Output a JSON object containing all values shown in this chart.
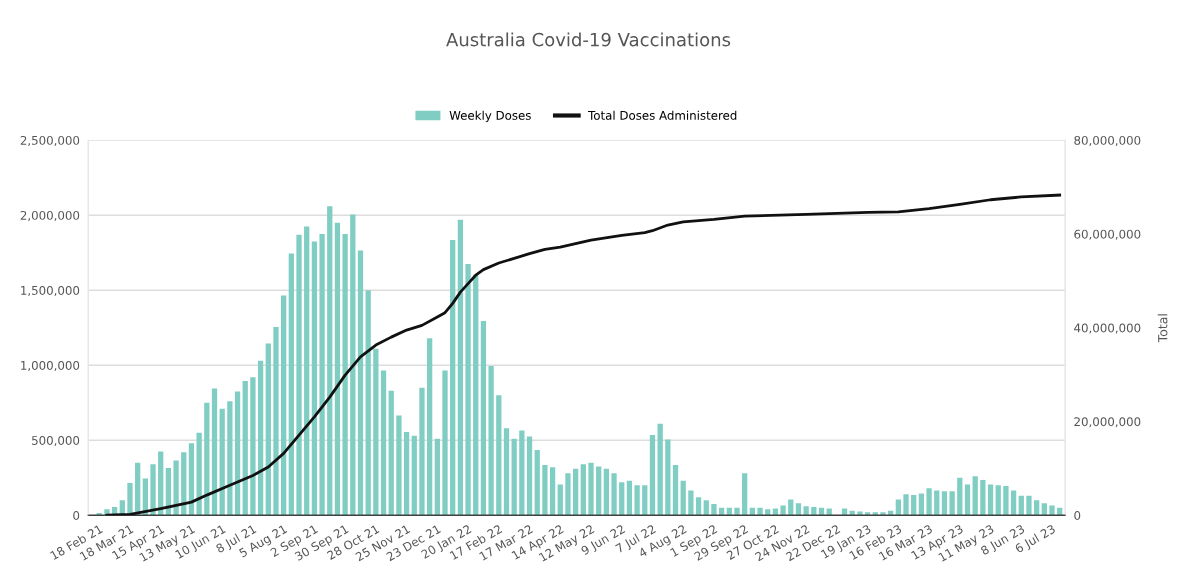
{
  "chart_data": {
    "type": "bar",
    "title": "Australia Covid-19 Vaccinations",
    "x": [
      "2021-02-18",
      "2021-02-25",
      "2021-03-04",
      "2021-03-11",
      "2021-03-18",
      "2021-03-25",
      "2021-04-01",
      "2021-04-08",
      "2021-04-15",
      "2021-04-22",
      "2021-04-29",
      "2021-05-06",
      "2021-05-13",
      "2021-05-20",
      "2021-05-27",
      "2021-06-03",
      "2021-06-10",
      "2021-06-17",
      "2021-06-24",
      "2021-07-01",
      "2021-07-08",
      "2021-07-15",
      "2021-07-22",
      "2021-07-29",
      "2021-08-05",
      "2021-08-12",
      "2021-08-19",
      "2021-08-26",
      "2021-09-02",
      "2021-09-09",
      "2021-09-16",
      "2021-09-23",
      "2021-09-30",
      "2021-10-07",
      "2021-10-14",
      "2021-10-21",
      "2021-10-28",
      "2021-11-04",
      "2021-11-11",
      "2021-11-18",
      "2021-11-25",
      "2021-12-02",
      "2021-12-09",
      "2021-12-16",
      "2021-12-23",
      "2021-12-30",
      "2022-01-06",
      "2022-01-13",
      "2022-01-20",
      "2022-01-27",
      "2022-02-03",
      "2022-02-10",
      "2022-02-17",
      "2022-02-24",
      "2022-03-03",
      "2022-03-10",
      "2022-03-17",
      "2022-03-24",
      "2022-03-31",
      "2022-04-07",
      "2022-04-14",
      "2022-04-21",
      "2022-04-28",
      "2022-05-05",
      "2022-05-12",
      "2022-05-19",
      "2022-05-26",
      "2022-06-02",
      "2022-06-09",
      "2022-06-16",
      "2022-06-23",
      "2022-06-30",
      "2022-07-07",
      "2022-07-14",
      "2022-07-21",
      "2022-07-28",
      "2022-08-04",
      "2022-08-11",
      "2022-08-18",
      "2022-08-25",
      "2022-09-01",
      "2022-09-08",
      "2022-09-15",
      "2022-09-22",
      "2022-09-29",
      "2022-10-06",
      "2022-10-13",
      "2022-10-20",
      "2022-10-27",
      "2022-11-03",
      "2022-11-10",
      "2022-11-17",
      "2022-11-24",
      "2022-12-01",
      "2022-12-08",
      "2022-12-15",
      "2022-12-22",
      "2022-12-29",
      "2023-01-05",
      "2023-01-12",
      "2023-01-19",
      "2023-01-26",
      "2023-02-02",
      "2023-02-09",
      "2023-02-16",
      "2023-02-23",
      "2023-03-02",
      "2023-03-09",
      "2023-03-16",
      "2023-03-23",
      "2023-03-30",
      "2023-04-06",
      "2023-04-13",
      "2023-04-20",
      "2023-04-27",
      "2023-05-04",
      "2023-05-11",
      "2023-05-18",
      "2023-05-25",
      "2023-06-01",
      "2023-06-08",
      "2023-06-15",
      "2023-06-22",
      "2023-06-29",
      "2023-07-06",
      "2023-07-13"
    ],
    "series": [
      {
        "name": "Weekly Doses",
        "color": "#7fcdc3",
        "values": [
          15000,
          40000,
          55000,
          100000,
          215000,
          350000,
          245000,
          340000,
          425000,
          315000,
          365000,
          420000,
          480000,
          550000,
          750000,
          845000,
          710000,
          760000,
          825000,
          895000,
          920000,
          1030000,
          1145000,
          1255000,
          1465000,
          1745000,
          1870000,
          1925000,
          1825000,
          1875000,
          2060000,
          1950000,
          1875000,
          2005000,
          1765000,
          1500000,
          1110000,
          965000,
          830000,
          665000,
          555000,
          530000,
          850000,
          1180000,
          510000,
          965000,
          1835000,
          1970000,
          1675000,
          1605000,
          1295000,
          995000,
          800000,
          580000,
          510000,
          565000,
          525000,
          435000,
          335000,
          320000,
          205000,
          280000,
          310000,
          340000,
          350000,
          325000,
          310000,
          280000,
          220000,
          230000,
          200000,
          200000,
          535000,
          610000,
          505000,
          335000,
          230000,
          165000,
          120000,
          100000,
          75000,
          50000,
          50000,
          50000,
          280000,
          50000,
          50000,
          40000,
          45000,
          65000,
          105000,
          80000,
          60000,
          55000,
          50000,
          45000,
          null,
          45000,
          30000,
          25000,
          20000,
          20000,
          20000,
          30000,
          105000,
          140000,
          135000,
          145000,
          180000,
          165000,
          160000,
          160000,
          250000,
          205000,
          260000,
          235000,
          205000,
          200000,
          195000,
          165000,
          130000,
          130000,
          100000,
          80000,
          65000,
          50000
        ]
      },
      {
        "name": "Total Doses Administered",
        "type": "line",
        "axis": "y2",
        "color": "#111111",
        "x": [
          "2021-02-25",
          "2021-03-18",
          "2021-04-15",
          "2021-05-13",
          "2021-05-27",
          "2021-06-17",
          "2021-07-08",
          "2021-07-22",
          "2021-08-05",
          "2021-08-19",
          "2021-09-02",
          "2021-09-16",
          "2021-09-30",
          "2021-10-14",
          "2021-10-28",
          "2021-11-11",
          "2021-11-25",
          "2021-12-09",
          "2021-12-23",
          "2021-12-30",
          "2022-01-06",
          "2022-01-13",
          "2022-01-20",
          "2022-01-27",
          "2022-02-03",
          "2022-02-17",
          "2022-03-03",
          "2022-03-17",
          "2022-03-31",
          "2022-04-14",
          "2022-05-12",
          "2022-06-09",
          "2022-06-30",
          "2022-07-07",
          "2022-07-21",
          "2022-08-04",
          "2022-09-01",
          "2022-09-29",
          "2022-11-24",
          "2023-01-19",
          "2023-02-16",
          "2023-03-16",
          "2023-04-13",
          "2023-05-11",
          "2023-06-08",
          "2023-07-13"
        ],
        "values": [
          0,
          200000,
          1400000,
          2800000,
          4300000,
          6400000,
          8500000,
          10300000,
          13200000,
          17100000,
          21000000,
          25200000,
          29900000,
          33800000,
          36300000,
          38000000,
          39500000,
          40500000,
          42300000,
          43200000,
          45200000,
          47600000,
          49400000,
          51200000,
          52400000,
          53800000,
          54800000,
          55800000,
          56700000,
          57200000,
          58700000,
          59700000,
          60300000,
          60700000,
          61900000,
          62600000,
          63100000,
          63800000,
          64200000,
          64600000,
          64700000,
          65400000,
          66300000,
          67300000,
          67900000,
          68300000
        ]
      }
    ],
    "xlim": [
      "2021-02-08",
      "2023-07-18"
    ],
    "xticks": [
      {
        "value": "2021-02-18",
        "label": "18 Feb 21"
      },
      {
        "value": "2021-03-18",
        "label": "18 Mar 21"
      },
      {
        "value": "2021-04-15",
        "label": "15 Apr 21"
      },
      {
        "value": "2021-05-13",
        "label": "13 May 21"
      },
      {
        "value": "2021-06-10",
        "label": "10 Jun 21"
      },
      {
        "value": "2021-07-08",
        "label": "8 Jul 21"
      },
      {
        "value": "2021-08-05",
        "label": "5 Aug 21"
      },
      {
        "value": "2021-09-02",
        "label": "2 Sep 21"
      },
      {
        "value": "2021-09-30",
        "label": "30 Sep 21"
      },
      {
        "value": "2021-10-28",
        "label": "28 Oct 21"
      },
      {
        "value": "2021-11-25",
        "label": "25 Nov 21"
      },
      {
        "value": "2021-12-23",
        "label": "23 Dec 21"
      },
      {
        "value": "2022-01-20",
        "label": "20 Jan 22"
      },
      {
        "value": "2022-02-17",
        "label": "17 Feb 22"
      },
      {
        "value": "2022-03-17",
        "label": "17 Mar 22"
      },
      {
        "value": "2022-04-14",
        "label": "14 Apr 22"
      },
      {
        "value": "2022-05-12",
        "label": "12 May 22"
      },
      {
        "value": "2022-06-09",
        "label": "9 Jun 22"
      },
      {
        "value": "2022-07-07",
        "label": "7 Jul 22"
      },
      {
        "value": "2022-08-04",
        "label": "4 Aug 22"
      },
      {
        "value": "2022-09-01",
        "label": "1 Sep 22"
      },
      {
        "value": "2022-09-29",
        "label": "29 Sep 22"
      },
      {
        "value": "2022-10-27",
        "label": "27 Oct 22"
      },
      {
        "value": "2022-11-24",
        "label": "24 Nov 22"
      },
      {
        "value": "2022-12-22",
        "label": "22 Dec 22"
      },
      {
        "value": "2023-01-19",
        "label": "19 Jan 23"
      },
      {
        "value": "2023-02-16",
        "label": "16 Feb 23"
      },
      {
        "value": "2023-03-16",
        "label": "16 Mar 23"
      },
      {
        "value": "2023-04-13",
        "label": "13 Apr 23"
      },
      {
        "value": "2023-05-11",
        "label": "11 May 23"
      },
      {
        "value": "2023-06-08",
        "label": "8 Jun 23"
      },
      {
        "value": "2023-07-06",
        "label": "6 Jul 23"
      }
    ],
    "ylim": [
      0,
      2500000
    ],
    "yticks": [
      {
        "value": 0,
        "label": "0"
      },
      {
        "value": 500000,
        "label": "500,000"
      },
      {
        "value": 1000000,
        "label": "1,000,000"
      },
      {
        "value": 1500000,
        "label": "1,500,000"
      },
      {
        "value": 2000000,
        "label": "2,000,000"
      },
      {
        "value": 2500000,
        "label": "2,500,000"
      }
    ],
    "y2lim": [
      0,
      80000000
    ],
    "y2ticks": [
      {
        "value": 0,
        "label": "0"
      },
      {
        "value": 20000000,
        "label": "20,000,000"
      },
      {
        "value": 40000000,
        "label": "40,000,000"
      },
      {
        "value": 60000000,
        "label": "60,000,000"
      },
      {
        "value": 80000000,
        "label": "80,000,000"
      }
    ],
    "y2label": "Total",
    "grid": "y",
    "legend": "top"
  }
}
